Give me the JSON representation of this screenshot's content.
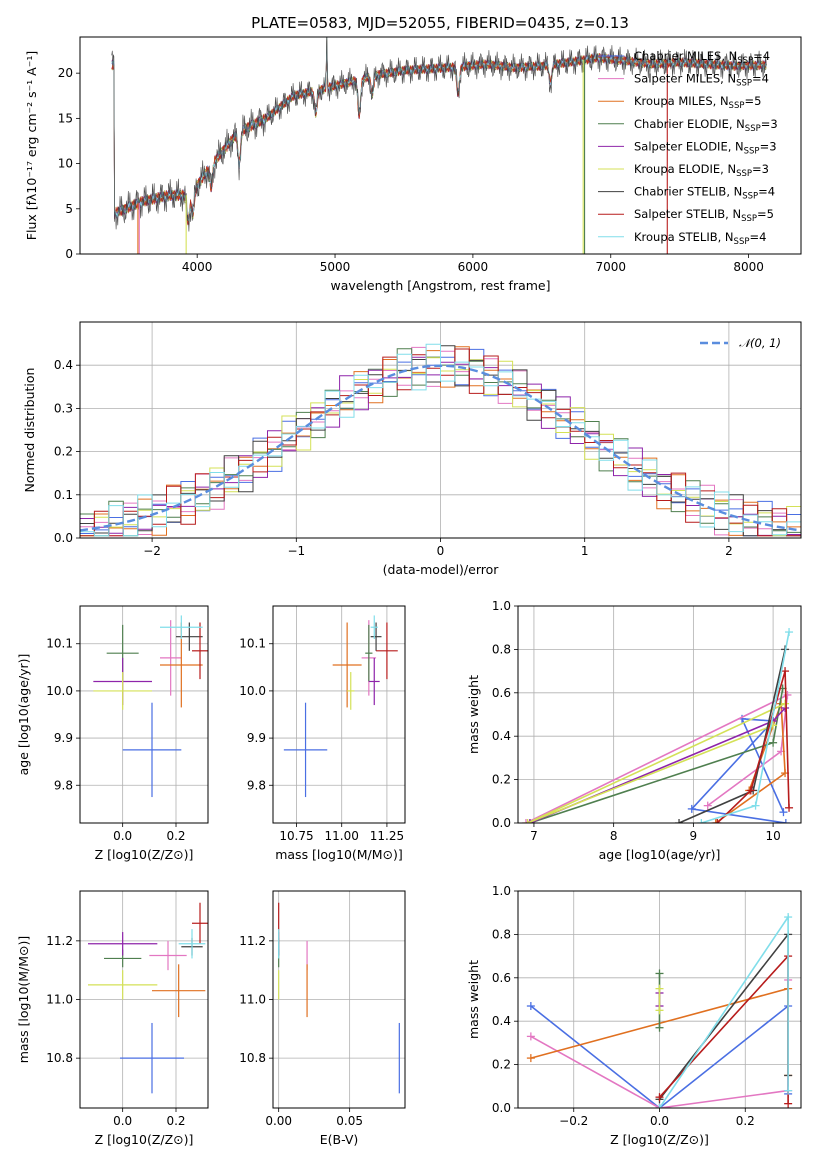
{
  "figure": {
    "title": "PLATE=0583, MJD=52055, FIBERID=0435, z=0.13"
  },
  "chart_data": [
    {
      "id": "spectrum",
      "type": "line",
      "title": "PLATE=0583, MJD=52055, FIBERID=0435, z=0.13",
      "xlabel": "wavelength [Angstrom, rest frame]",
      "ylabel": "Flux [f_λ 10^-17 erg cm^-2 s^-1 A^-1]",
      "xlim": [
        3150,
        8380
      ],
      "ylim": [
        0,
        24
      ],
      "xticks": [
        4000,
        5000,
        6000,
        7000,
        8000
      ],
      "yticks": [
        0,
        5,
        10,
        15,
        20
      ],
      "grid": false,
      "legend_position": "right",
      "continuum": {
        "x": [
          3400,
          3600,
          3800,
          3950,
          4100,
          4300,
          4500,
          4700,
          4900,
          5100,
          5300,
          5500,
          5700,
          5900,
          6100,
          6300,
          6500,
          6700,
          6900,
          7100,
          7300,
          7500,
          7700,
          7900,
          8100
        ],
        "y": [
          4.5,
          5.8,
          6.5,
          6.5,
          9.8,
          13.5,
          15.0,
          17.5,
          18.2,
          19.0,
          19.8,
          20.3,
          20.5,
          20.7,
          21.0,
          20.6,
          20.8,
          21.2,
          21.7,
          21.4,
          21.0,
          21.2,
          21.0,
          20.8,
          20.9
        ]
      },
      "absorption_features": [
        {
          "x": 3934,
          "depth": 3.0
        },
        {
          "x": 3969,
          "depth": 2.5
        },
        {
          "x": 4102,
          "depth": 2.5
        },
        {
          "x": 4305,
          "depth": 3.5
        },
        {
          "x": 4861,
          "depth": 2.5
        },
        {
          "x": 5175,
          "depth": 4.0
        },
        {
          "x": 5270,
          "depth": 2.0
        },
        {
          "x": 5892,
          "depth": 3.0
        },
        {
          "x": 6563,
          "depth": 2.0
        }
      ],
      "emission_features": [
        {
          "x": 4940,
          "height": 5.5
        }
      ],
      "drop_lines": [
        {
          "series": "Kroupa MILES",
          "x": 3570
        },
        {
          "series": "Salpeter MILES",
          "x": 3580
        },
        {
          "series": "Kroupa ELODIE",
          "x": 3920
        },
        {
          "series": "Kroupa ELODIE",
          "x": 6800
        },
        {
          "series": "Chabrier ELODIE",
          "x": 6810
        },
        {
          "series": "Salpeter STELIB",
          "x": 7410
        }
      ],
      "series": [
        {
          "name": "Chabrier MILES",
          "n_ssp": "4",
          "color": "#4a6fe3"
        },
        {
          "name": "Salpeter MILES",
          "n_ssp": "4",
          "color": "#e377c2"
        },
        {
          "name": "Kroupa MILES",
          "n_ssp": "5",
          "color": "#e07020"
        },
        {
          "name": "Chabrier ELODIE",
          "n_ssp": "3",
          "color": "#4f7f4f"
        },
        {
          "name": "Salpeter ELODIE",
          "n_ssp": "3",
          "color": "#8e24aa"
        },
        {
          "name": "Kroupa ELODIE",
          "n_ssp": "3",
          "color": "#d4e157"
        },
        {
          "name": "Chabrier STELIB",
          "n_ssp": "4",
          "color": "#404040"
        },
        {
          "name": "Salpeter STELIB",
          "n_ssp": "5",
          "color": "#b71c1c"
        },
        {
          "name": "Kroupa STELIB",
          "n_ssp": "4",
          "color": "#80deea"
        }
      ]
    },
    {
      "id": "residuals",
      "type": "histogram",
      "xlabel": "(data-model)/error",
      "ylabel": "Normed distribution",
      "xlim": [
        -2.5,
        2.5
      ],
      "ylim": [
        0,
        0.5
      ],
      "xticks": [
        -2,
        -1,
        0,
        1,
        2
      ],
      "yticks": [
        0.0,
        0.1,
        0.2,
        0.3,
        0.4
      ],
      "grid": true,
      "legend_position": "top-right",
      "reference_curve": {
        "name": "𝒩(0, 1)",
        "color": "#5a8dde",
        "style": "dashed"
      }
    },
    {
      "id": "z-vs-age",
      "type": "scatter",
      "xlabel": "Z [log10(Z/Z⊙)]",
      "ylabel": "age  [log10(age/yr)]",
      "xlim": [
        -0.16,
        0.32
      ],
      "ylim": [
        9.72,
        10.18
      ],
      "xticks": [
        0.0,
        0.2
      ],
      "yticks": [
        9.8,
        9.9,
        10.0,
        10.1
      ],
      "grid": true,
      "points": [
        {
          "series": "Chabrier MILES",
          "x": 0.11,
          "y": 9.875,
          "xerr": 0.11,
          "yerr": 0.1
        },
        {
          "series": "Salpeter MILES",
          "x": 0.18,
          "y": 10.07,
          "xerr": 0.04,
          "yerr": 0.08
        },
        {
          "series": "Kroupa MILES",
          "x": 0.22,
          "y": 10.055,
          "xerr": 0.08,
          "yerr": 0.09
        },
        {
          "series": "Chabrier ELODIE",
          "x": 0.0,
          "y": 10.08,
          "xerr": 0.06,
          "yerr": 0.06
        },
        {
          "series": "Salpeter ELODIE",
          "x": 0.0,
          "y": 10.02,
          "xerr": 0.11,
          "yerr": 0.05
        },
        {
          "series": "Kroupa ELODIE",
          "x": 0.0,
          "y": 10.0,
          "xerr": 0.11,
          "yerr": 0.04
        },
        {
          "series": "Chabrier STELIB",
          "x": 0.25,
          "y": 10.115,
          "xerr": 0.05,
          "yerr": 0.03
        },
        {
          "series": "Salpeter STELIB",
          "x": 0.29,
          "y": 10.085,
          "xerr": 0.03,
          "yerr": 0.06
        },
        {
          "series": "Kroupa STELIB",
          "x": 0.22,
          "y": 10.135,
          "xerr": 0.08,
          "yerr": 0.025
        }
      ]
    },
    {
      "id": "mass-vs-age",
      "type": "scatter",
      "xlabel": "mass [log10(M/M⊙)]",
      "ylabel": "",
      "xlim": [
        10.62,
        11.35
      ],
      "ylim": [
        9.72,
        10.18
      ],
      "xticks": [
        10.75,
        11.0,
        11.25
      ],
      "yticks": [
        9.8,
        9.9,
        10.0,
        10.1
      ],
      "grid": true,
      "points": [
        {
          "series": "Chabrier MILES",
          "x": 10.8,
          "y": 9.875,
          "xerr": 0.12,
          "yerr": 0.1
        },
        {
          "series": "Salpeter MILES",
          "x": 11.15,
          "y": 10.07,
          "xerr": 0.04,
          "yerr": 0.08
        },
        {
          "series": "Kroupa MILES",
          "x": 11.03,
          "y": 10.055,
          "xerr": 0.08,
          "yerr": 0.09
        },
        {
          "series": "Chabrier ELODIE",
          "x": 11.15,
          "y": 10.08,
          "xerr": 0.02,
          "yerr": 0.06
        },
        {
          "series": "Salpeter ELODIE",
          "x": 11.18,
          "y": 10.02,
          "xerr": 0.03,
          "yerr": 0.05
        },
        {
          "series": "Kroupa ELODIE",
          "x": 11.05,
          "y": 10.0,
          "xerr": 0.02,
          "yerr": 0.04
        },
        {
          "series": "Chabrier STELIB",
          "x": 11.19,
          "y": 10.115,
          "xerr": 0.03,
          "yerr": 0.03
        },
        {
          "series": "Salpeter STELIB",
          "x": 11.25,
          "y": 10.085,
          "xerr": 0.06,
          "yerr": 0.06
        },
        {
          "series": "Kroupa STELIB",
          "x": 11.18,
          "y": 10.135,
          "xerr": 0.02,
          "yerr": 0.025
        }
      ]
    },
    {
      "id": "age-vs-weight",
      "type": "line",
      "xlabel": "age  [log10(age/yr)]",
      "ylabel": "mass weight",
      "xlim": [
        6.8,
        10.35
      ],
      "ylim": [
        0,
        1
      ],
      "xticks": [
        7,
        8,
        9,
        10
      ],
      "yticks": [
        0.0,
        0.2,
        0.4,
        0.6,
        0.8,
        1.0
      ],
      "grid": true,
      "series": [
        {
          "name": "Chabrier MILES",
          "points": [
            [
              10.13,
              0.05
            ],
            [
              9.61,
              0.48
            ],
            [
              10.0,
              0.47
            ],
            [
              8.98,
              0.065
            ],
            [
              10.16,
              0.0
            ]
          ]
        },
        {
          "name": "Salpeter MILES",
          "points": [
            [
              9.18,
              0.08
            ],
            [
              10.1,
              0.33
            ],
            [
              10.18,
              0.59
            ],
            [
              6.9,
              0.0
            ]
          ]
        },
        {
          "name": "Kroupa MILES",
          "points": [
            [
              9.7,
              0.15
            ],
            [
              10.1,
              0.55
            ],
            [
              10.15,
              0.23
            ],
            [
              9.28,
              0.0
            ]
          ]
        },
        {
          "name": "Chabrier ELODIE",
          "points": [
            [
              6.95,
              0.0
            ],
            [
              10.0,
              0.37
            ],
            [
              10.12,
              0.62
            ]
          ]
        },
        {
          "name": "Salpeter ELODIE",
          "points": [
            [
              10.15,
              0.53
            ],
            [
              10.0,
              0.47
            ],
            [
              6.95,
              0.0
            ]
          ]
        },
        {
          "name": "Kroupa ELODIE",
          "points": [
            [
              10.0,
              0.45
            ],
            [
              6.92,
              0.0
            ],
            [
              10.15,
              0.55
            ]
          ]
        },
        {
          "name": "Chabrier STELIB",
          "points": [
            [
              8.82,
              0.0
            ],
            [
              9.75,
              0.15
            ],
            [
              10.15,
              0.8
            ]
          ]
        },
        {
          "name": "Salpeter STELIB",
          "points": [
            [
              9.3,
              0.0
            ],
            [
              9.72,
              0.15
            ],
            [
              10.15,
              0.7
            ],
            [
              10.2,
              0.07
            ]
          ]
        },
        {
          "name": "Kroupa STELIB",
          "points": [
            [
              9.1,
              0.0
            ],
            [
              9.78,
              0.08
            ],
            [
              10.2,
              0.88
            ]
          ]
        }
      ]
    },
    {
      "id": "z-vs-mass",
      "type": "scatter",
      "xlabel": "Z [log10(Z/Z⊙)]",
      "ylabel": "mass [log10(M/M⊙)]",
      "xlim": [
        -0.16,
        0.32
      ],
      "ylim": [
        10.63,
        11.37
      ],
      "xticks": [
        0.0,
        0.2
      ],
      "yticks": [
        10.8,
        11.0,
        11.2
      ],
      "grid": true,
      "points": [
        {
          "series": "Chabrier MILES",
          "x": 0.11,
          "y": 10.8,
          "xerr": 0.12,
          "yerr": 0.12
        },
        {
          "series": "Salpeter MILES",
          "x": 0.17,
          "y": 11.15,
          "xerr": 0.07,
          "yerr": 0.05
        },
        {
          "series": "Kroupa MILES",
          "x": 0.21,
          "y": 11.03,
          "xerr": 0.1,
          "yerr": 0.09
        },
        {
          "series": "Chabrier ELODIE",
          "x": 0.0,
          "y": 11.14,
          "xerr": 0.07,
          "yerr": 0.03
        },
        {
          "series": "Salpeter ELODIE",
          "x": 0.0,
          "y": 11.19,
          "xerr": 0.13,
          "yerr": 0.04
        },
        {
          "series": "Kroupa ELODIE",
          "x": 0.0,
          "y": 11.05,
          "xerr": 0.13,
          "yerr": 0.05
        },
        {
          "series": "Chabrier STELIB",
          "x": 0.26,
          "y": 11.18,
          "xerr": 0.04,
          "yerr": 0.03
        },
        {
          "series": "Salpeter STELIB",
          "x": 0.29,
          "y": 11.26,
          "xerr": 0.03,
          "yerr": 0.07
        },
        {
          "series": "Kroupa STELIB",
          "x": 0.26,
          "y": 11.19,
          "xerr": 0.05,
          "yerr": 0.05
        }
      ]
    },
    {
      "id": "ebv-vs-mass",
      "type": "scatter",
      "xlabel": "E(B-V)",
      "ylabel": "",
      "xlim": [
        -0.004,
        0.089
      ],
      "ylim": [
        10.63,
        11.37
      ],
      "xticks": [
        0.0,
        0.05
      ],
      "yticks": [
        10.8,
        11.0,
        11.2
      ],
      "grid": true,
      "points": [
        {
          "series": "Chabrier MILES",
          "x": 0.085,
          "y": 10.8,
          "xerr": 0.0,
          "yerr": 0.12
        },
        {
          "series": "Salpeter MILES",
          "x": 0.02,
          "y": 11.15,
          "xerr": 0.0,
          "yerr": 0.05
        },
        {
          "series": "Kroupa MILES",
          "x": 0.02,
          "y": 11.03,
          "xerr": 0.0,
          "yerr": 0.09
        },
        {
          "series": "Chabrier ELODIE",
          "x": 0.0,
          "y": 11.14,
          "xerr": 0.0,
          "yerr": 0.03
        },
        {
          "series": "Salpeter ELODIE",
          "x": 0.0,
          "y": 11.19,
          "xerr": 0.0,
          "yerr": 0.04
        },
        {
          "series": "Kroupa ELODIE",
          "x": 0.0,
          "y": 11.05,
          "xerr": 0.0,
          "yerr": 0.05
        },
        {
          "series": "Chabrier STELIB",
          "x": 0.0,
          "y": 11.18,
          "xerr": 0.0,
          "yerr": 0.03
        },
        {
          "series": "Salpeter STELIB",
          "x": 0.0,
          "y": 11.26,
          "xerr": 0.0,
          "yerr": 0.07
        },
        {
          "series": "Kroupa STELIB",
          "x": 0.0,
          "y": 11.19,
          "xerr": 0.0,
          "yerr": 0.05
        }
      ]
    },
    {
      "id": "z-vs-weight",
      "type": "line",
      "xlabel": "Z [log10(Z/Z⊙)]",
      "ylabel": "mass weight",
      "xlim": [
        -0.33,
        0.33
      ],
      "ylim": [
        0,
        1
      ],
      "xticks": [
        -0.2,
        0.0,
        0.2
      ],
      "yticks": [
        0.0,
        0.2,
        0.4,
        0.6,
        0.8,
        1.0
      ],
      "grid": true,
      "series": [
        {
          "name": "Chabrier MILES",
          "points": [
            [
              -0.3,
              0.47
            ],
            [
              0.0,
              0.0
            ],
            [
              0.3,
              0.47
            ],
            [
              0.3,
              0.065
            ]
          ]
        },
        {
          "name": "Salpeter MILES",
          "points": [
            [
              -0.3,
              0.33
            ],
            [
              0.0,
              0.0
            ],
            [
              0.3,
              0.08
            ],
            [
              0.3,
              0.59
            ]
          ]
        },
        {
          "name": "Kroupa MILES",
          "points": [
            [
              -0.3,
              0.23
            ],
            [
              0.3,
              0.55
            ],
            [
              0.3,
              0.15
            ]
          ]
        },
        {
          "name": "Chabrier ELODIE",
          "points": [
            [
              0.0,
              0.62
            ],
            [
              0.0,
              0.37
            ]
          ]
        },
        {
          "name": "Salpeter ELODIE",
          "points": [
            [
              0.0,
              0.53
            ],
            [
              0.0,
              0.47
            ]
          ]
        },
        {
          "name": "Kroupa ELODIE",
          "points": [
            [
              0.0,
              0.55
            ],
            [
              0.0,
              0.45
            ]
          ]
        },
        {
          "name": "Chabrier STELIB",
          "points": [
            [
              0.0,
              0.04
            ],
            [
              0.3,
              0.8
            ],
            [
              0.3,
              0.15
            ]
          ]
        },
        {
          "name": "Salpeter STELIB",
          "points": [
            [
              0.0,
              0.05
            ],
            [
              0.3,
              0.7
            ],
            [
              0.3,
              0.02
            ]
          ]
        },
        {
          "name": "Kroupa STELIB",
          "points": [
            [
              0.0,
              0.0
            ],
            [
              0.3,
              0.88
            ],
            [
              0.3,
              0.08
            ]
          ]
        }
      ]
    }
  ]
}
